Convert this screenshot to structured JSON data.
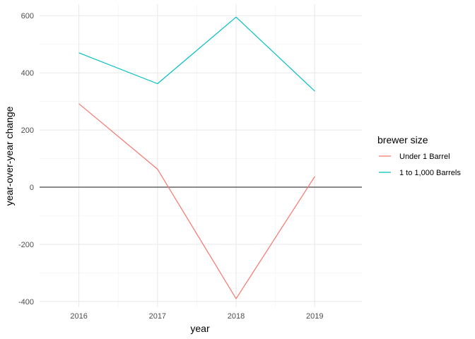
{
  "chart_data": {
    "type": "line",
    "x": [
      2016,
      2017,
      2018,
      2019
    ],
    "xlabel": "year",
    "ylabel": "year-over-year change",
    "xlim": [
      2015.5,
      2019.6
    ],
    "ylim": [
      -420,
      640
    ],
    "x_ticks": [
      "2016",
      "2017",
      "2018",
      "2019"
    ],
    "y_ticks": [
      "-400",
      "-200",
      "0",
      "200",
      "400",
      "600"
    ],
    "y_tick_values": [
      -400,
      -200,
      0,
      200,
      400,
      600
    ],
    "y_minor_values": [
      -300,
      -100,
      100,
      300,
      500
    ],
    "grid": true,
    "reference_line": {
      "y": 0,
      "color": "#666666"
    },
    "legend": {
      "title": "brewer size",
      "position": "right"
    },
    "series": [
      {
        "name": "Under 1 Barrel",
        "color": "#F8766D",
        "values": [
          292,
          63,
          -390,
          37
        ]
      },
      {
        "name": "1 to 1,000 Barrels",
        "color": "#00BFC4",
        "values": [
          470,
          362,
          595,
          336
        ]
      }
    ]
  }
}
